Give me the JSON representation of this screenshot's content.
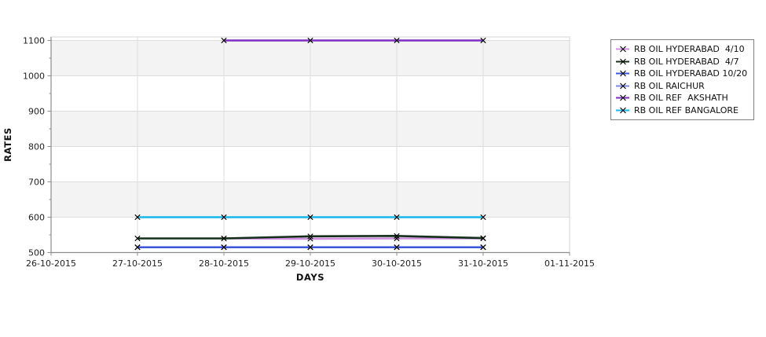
{
  "chart_data": {
    "type": "line",
    "title": "",
    "xlabel": "DAYS",
    "ylabel": "RATES",
    "categories": [
      "26-10-2015",
      "27-10-2015",
      "28-10-2015",
      "29-10-2015",
      "30-10-2015",
      "31-10-2015",
      "01-11-2015"
    ],
    "ylim": [
      500,
      1100
    ],
    "ytick_major_step": 100,
    "ytick_minor_step": 50,
    "grid": true,
    "legend_position": "top-right",
    "marker": "x",
    "marker_color": "#000000",
    "series": [
      {
        "name": "RB OIL HYDERABAD  4/10",
        "color": "#cd8fdd",
        "draw_order": 1,
        "x": [
          "28-10-2015",
          "29-10-2015",
          "30-10-2015",
          "31-10-2015"
        ],
        "values": [
          540,
          539,
          540,
          540
        ]
      },
      {
        "name": "RB OIL HYDERABAD  4/7",
        "color": "#14301a",
        "draw_order": 2,
        "x": [
          "27-10-2015",
          "28-10-2015",
          "29-10-2015",
          "30-10-2015",
          "31-10-2015"
        ],
        "values": [
          540,
          540,
          546,
          547,
          541
        ]
      },
      {
        "name": "RB OIL HYDERABAD 10/20",
        "color": "#3b55d8",
        "draw_order": 3,
        "x": [
          "27-10-2015",
          "28-10-2015",
          "29-10-2015",
          "30-10-2015",
          "31-10-2015"
        ],
        "values": [
          515,
          515,
          515,
          515,
          515
        ]
      },
      {
        "name": "RB OIL RAICHUR",
        "color": "#7a85e6",
        "draw_order": 0,
        "x": [
          "27-10-2015",
          "28-10-2015",
          "29-10-2015",
          "30-10-2015",
          "31-10-2015"
        ],
        "values": [
          515,
          515,
          515,
          515,
          515
        ]
      },
      {
        "name": "RB OIL REF  AKSHATH",
        "color": "#7d2ec1",
        "draw_order": 4,
        "x": [
          "28-10-2015",
          "29-10-2015",
          "30-10-2015",
          "31-10-2015"
        ],
        "values": [
          1100,
          1100,
          1100,
          1100
        ]
      },
      {
        "name": "RB OIL REF BANGALORE",
        "color": "#15b8e8",
        "draw_order": 5,
        "x": [
          "27-10-2015",
          "28-10-2015",
          "29-10-2015",
          "30-10-2015",
          "31-10-2015"
        ],
        "values": [
          600,
          600,
          600,
          600,
          600
        ]
      }
    ]
  },
  "colors": {
    "background": "#ffffff",
    "band": "#f3f3f3",
    "gridline": "#dcdcdc",
    "plot_border": "#d4d4d4",
    "axis_line": "#8c8c8c",
    "tick_text": "#222222",
    "legend_border": "#7f7f7f",
    "legend_text": "#111111"
  }
}
